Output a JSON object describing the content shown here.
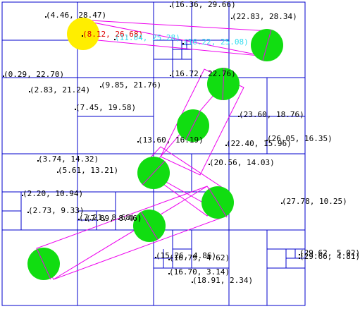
{
  "points": [
    {
      "label": "(16.36, 29.66)"
    },
    {
      "label": "(4.46, 28.47)"
    },
    {
      "label": "(22.83, 28.34)"
    },
    {
      "label": "(8.12, 26.68)"
    },
    {
      "label": "(11.04, 25.28)"
    },
    {
      "label": "(16.22, 25.08)"
    },
    {
      "label": "(0.29, 22.70)"
    },
    {
      "label": "(16.72, 22.76)"
    },
    {
      "label": "(9.85, 21.76)"
    },
    {
      "label": "(2.83, 21.24)"
    },
    {
      "label": "(7.45, 19.58)"
    },
    {
      "label": "(23.60, 18.76)"
    },
    {
      "label": "(26.05, 16.35)"
    },
    {
      "label": "(13.60, 16.19)"
    },
    {
      "label": "(22.40, 15.96)"
    },
    {
      "label": "(3.74, 14.32)"
    },
    {
      "label": "(20.56, 14.03)"
    },
    {
      "label": "(5.61, 13.21)"
    },
    {
      "label": "(2.20, 10.94)"
    },
    {
      "label": "(27.78, 10.25)"
    },
    {
      "label": "(2.73, 9.33)"
    },
    {
      "label": "(7.21, 8.68)"
    },
    {
      "label": "(7.89, 8.46)"
    },
    {
      "label": "(15.26, 4.86)"
    },
    {
      "label": "(16.79, 4.62)"
    },
    {
      "label": "(29.62, 5.02)"
    },
    {
      "label": "(29.66, 4.81)"
    },
    {
      "label": "(16.70, 3.14)"
    },
    {
      "label": "(18.91, 2.34)"
    }
  ],
  "label_colors": {
    "default": "#000000",
    "red": "#dd0000",
    "cyan": "#33ddee"
  },
  "shape_colors": {
    "grid": "#0000cc",
    "capsule": "#ee00ee",
    "robot_green": "#11dd11",
    "robot_yellow": "#ffee00"
  }
}
